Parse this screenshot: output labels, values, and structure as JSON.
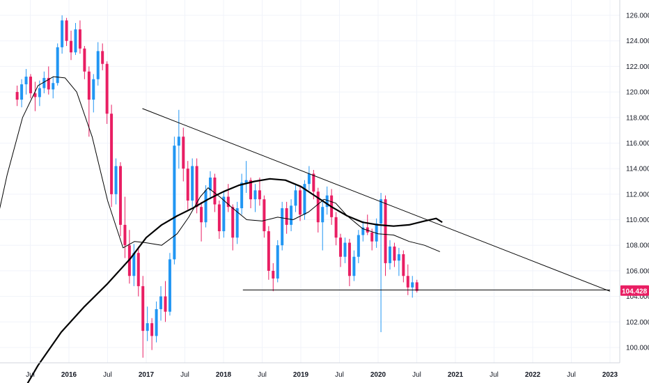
{
  "chart_data": {
    "type": "candlestick",
    "ylim": [
      98.8,
      127.2
    ],
    "y_ticks": [
      "100.000",
      "102.000",
      "104.000",
      "106.000",
      "108.000",
      "110.000",
      "112.000",
      "114.000",
      "116.000",
      "118.000",
      "120.000",
      "122.000",
      "124.000",
      "126.000"
    ],
    "x_ticks": [
      "Jul",
      "2016",
      "Jul",
      "2017",
      "Jul",
      "2018",
      "Jul",
      "2019",
      "Jul",
      "2020",
      "Jul",
      "2021",
      "Jul",
      "2022",
      "Jul",
      "2023"
    ],
    "last_price": "104.428",
    "colors": {
      "up": "#2196f3",
      "down": "#e91e63",
      "lines": "#000000",
      "grid": "#f0f3fa",
      "price_label": "#e91e63"
    },
    "candles": [
      [
        120.0,
        120.5,
        118.9,
        119.4
      ],
      [
        119.4,
        121.0,
        118.8,
        120.6
      ],
      [
        120.6,
        121.8,
        119.8,
        121.2
      ],
      [
        121.2,
        121.4,
        119.5,
        119.9
      ],
      [
        119.9,
        120.8,
        118.5,
        119.6
      ],
      [
        119.6,
        120.9,
        118.9,
        120.3
      ],
      [
        120.3,
        121.6,
        119.9,
        121.1
      ],
      [
        121.1,
        122.0,
        119.8,
        120.2
      ],
      [
        120.2,
        121.2,
        119.5,
        120.7
      ],
      [
        120.7,
        123.8,
        120.5,
        123.5
      ],
      [
        123.5,
        126.0,
        123.0,
        125.6
      ],
      [
        125.6,
        125.8,
        123.6,
        124.0
      ],
      [
        124.0,
        124.8,
        122.5,
        123.1
      ],
      [
        123.1,
        125.4,
        122.9,
        124.9
      ],
      [
        124.9,
        125.6,
        123.0,
        123.4
      ],
      [
        123.4,
        123.6,
        121.0,
        121.6
      ],
      [
        121.6,
        122.0,
        116.5,
        119.4
      ],
      [
        119.4,
        121.4,
        118.4,
        121.0
      ],
      [
        121.0,
        123.9,
        120.5,
        123.2
      ],
      [
        123.2,
        123.8,
        121.7,
        122.2
      ],
      [
        122.2,
        122.4,
        117.5,
        118.3
      ],
      [
        118.3,
        119.0,
        111.0,
        112.0
      ],
      [
        112.0,
        114.8,
        111.2,
        114.2
      ],
      [
        114.2,
        114.5,
        108.7,
        109.6
      ],
      [
        109.6,
        111.8,
        107.0,
        108.0
      ],
      [
        108.0,
        109.2,
        105.0,
        105.6
      ],
      [
        105.6,
        108.1,
        104.8,
        107.4
      ],
      [
        107.4,
        107.9,
        104.0,
        104.8
      ],
      [
        104.8,
        105.6,
        99.2,
        101.3
      ],
      [
        101.3,
        103.2,
        100.5,
        101.9
      ],
      [
        101.9,
        102.3,
        99.8,
        100.9
      ],
      [
        100.9,
        103.6,
        100.4,
        103.0
      ],
      [
        103.0,
        104.8,
        102.1,
        104.0
      ],
      [
        104.0,
        105.2,
        102.0,
        102.8
      ],
      [
        102.8,
        107.4,
        102.5,
        106.9
      ],
      [
        106.9,
        116.5,
        106.5,
        115.8
      ],
      [
        115.8,
        118.6,
        114.0,
        116.5
      ],
      [
        116.5,
        117.2,
        113.0,
        114.0
      ],
      [
        114.0,
        114.6,
        110.8,
        111.5
      ],
      [
        111.5,
        114.8,
        111.0,
        114.2
      ],
      [
        114.2,
        114.8,
        110.5,
        111.0
      ],
      [
        111.0,
        111.4,
        108.3,
        109.8
      ],
      [
        109.8,
        112.7,
        109.4,
        112.3
      ],
      [
        112.3,
        113.8,
        111.6,
        113.3
      ],
      [
        113.3,
        113.6,
        110.6,
        111.2
      ],
      [
        111.2,
        111.5,
        108.5,
        109.1
      ],
      [
        109.1,
        112.2,
        108.6,
        111.8
      ],
      [
        111.8,
        112.8,
        110.6,
        111.0
      ],
      [
        111.0,
        111.2,
        107.6,
        108.6
      ],
      [
        108.6,
        111.4,
        108.1,
        110.9
      ],
      [
        110.9,
        113.6,
        110.4,
        112.9
      ],
      [
        112.9,
        114.6,
        112.1,
        113.1
      ],
      [
        113.1,
        113.3,
        110.9,
        111.6
      ],
      [
        111.6,
        112.8,
        110.6,
        112.3
      ],
      [
        112.3,
        113.3,
        111.1,
        111.6
      ],
      [
        111.6,
        111.9,
        108.6,
        109.1
      ],
      [
        109.1,
        109.5,
        105.3,
        106.0
      ],
      [
        106.0,
        106.6,
        104.4,
        105.4
      ],
      [
        105.4,
        108.4,
        105.1,
        108.0
      ],
      [
        108.0,
        111.4,
        107.6,
        110.9
      ],
      [
        110.9,
        111.4,
        108.9,
        109.6
      ],
      [
        109.6,
        111.6,
        109.1,
        111.1
      ],
      [
        111.1,
        112.8,
        110.6,
        112.3
      ],
      [
        112.3,
        112.6,
        109.9,
        110.4
      ],
      [
        110.4,
        113.1,
        110.0,
        112.8
      ],
      [
        112.8,
        114.2,
        112.3,
        113.6
      ],
      [
        113.6,
        113.9,
        111.6,
        112.2
      ],
      [
        112.2,
        112.5,
        109.0,
        109.8
      ],
      [
        109.8,
        111.6,
        107.6,
        111.0
      ],
      [
        111.0,
        112.6,
        110.4,
        111.9
      ],
      [
        111.9,
        112.4,
        109.6,
        110.2
      ],
      [
        110.2,
        110.6,
        108.0,
        108.6
      ],
      [
        108.6,
        108.9,
        106.3,
        107.1
      ],
      [
        107.1,
        108.6,
        106.6,
        108.2
      ],
      [
        108.2,
        108.5,
        104.8,
        105.6
      ],
      [
        105.6,
        107.6,
        105.2,
        107.1
      ],
      [
        107.1,
        109.2,
        106.6,
        108.8
      ],
      [
        108.8,
        109.9,
        108.3,
        109.4
      ],
      [
        109.4,
        110.4,
        108.8,
        109.0
      ],
      [
        109.0,
        109.3,
        107.6,
        108.3
      ],
      [
        108.3,
        110.1,
        107.8,
        109.7
      ],
      [
        109.7,
        112.1,
        101.2,
        111.6
      ],
      [
        111.6,
        111.9,
        105.6,
        106.6
      ],
      [
        106.6,
        108.4,
        106.1,
        107.9
      ],
      [
        107.9,
        108.2,
        106.3,
        106.8
      ],
      [
        106.8,
        107.8,
        105.6,
        107.3
      ],
      [
        107.3,
        107.6,
        105.1,
        105.6
      ],
      [
        105.6,
        106.5,
        104.1,
        104.7
      ],
      [
        104.7,
        105.6,
        103.9,
        105.1
      ],
      [
        105.1,
        105.3,
        104.3,
        104.43
      ]
    ],
    "trend_upper": {
      "from": [
        2016.95,
        118.7
      ],
      "to": [
        2023.0,
        104.4
      ]
    },
    "trend_lower": {
      "from": [
        2018.25,
        104.5
      ],
      "to": [
        2023.0,
        104.5
      ]
    },
    "ma_slow": [
      [
        2015.35,
        96.0
      ],
      [
        2015.6,
        98.6
      ],
      [
        2015.9,
        101.2
      ],
      [
        2016.2,
        103.2
      ],
      [
        2016.5,
        105.0
      ],
      [
        2016.8,
        107.0
      ],
      [
        2017.0,
        108.6
      ],
      [
        2017.2,
        109.6
      ],
      [
        2017.4,
        110.3
      ],
      [
        2017.6,
        110.9
      ],
      [
        2017.8,
        111.6
      ],
      [
        2018.0,
        112.2
      ],
      [
        2018.2,
        112.7
      ],
      [
        2018.4,
        113.0
      ],
      [
        2018.6,
        113.2
      ],
      [
        2018.8,
        113.1
      ],
      [
        2019.0,
        112.6
      ],
      [
        2019.2,
        111.8
      ],
      [
        2019.4,
        111.0
      ],
      [
        2019.6,
        110.3
      ],
      [
        2019.8,
        109.8
      ],
      [
        2020.0,
        109.6
      ],
      [
        2020.2,
        109.5
      ],
      [
        2020.4,
        109.6
      ],
      [
        2020.6,
        109.9
      ],
      [
        2020.75,
        110.1
      ],
      [
        2020.83,
        109.8
      ]
    ],
    "ma_fast": [
      [
        2015.0,
        108.0
      ],
      [
        2015.2,
        113.5
      ],
      [
        2015.4,
        118.0
      ],
      [
        2015.6,
        120.5
      ],
      [
        2015.8,
        121.2
      ],
      [
        2015.95,
        121.1
      ],
      [
        2016.1,
        120.0
      ],
      [
        2016.3,
        116.5
      ],
      [
        2016.5,
        111.5
      ],
      [
        2016.7,
        107.8
      ],
      [
        2016.85,
        108.3
      ],
      [
        2017.0,
        108.2
      ],
      [
        2017.2,
        108.0
      ],
      [
        2017.4,
        108.9
      ],
      [
        2017.55,
        110.2
      ],
      [
        2017.7,
        111.8
      ],
      [
        2017.8,
        112.5
      ],
      [
        2017.95,
        111.8
      ],
      [
        2018.1,
        111.0
      ],
      [
        2018.3,
        110.0
      ],
      [
        2018.5,
        109.9
      ],
      [
        2018.7,
        110.2
      ],
      [
        2018.9,
        110.0
      ],
      [
        2019.1,
        110.6
      ],
      [
        2019.3,
        111.6
      ],
      [
        2019.45,
        111.3
      ],
      [
        2019.6,
        110.3
      ],
      [
        2019.8,
        109.3
      ],
      [
        2020.0,
        108.9
      ],
      [
        2020.2,
        108.8
      ],
      [
        2020.4,
        108.3
      ],
      [
        2020.6,
        108.0
      ],
      [
        2020.8,
        107.5
      ]
    ]
  }
}
